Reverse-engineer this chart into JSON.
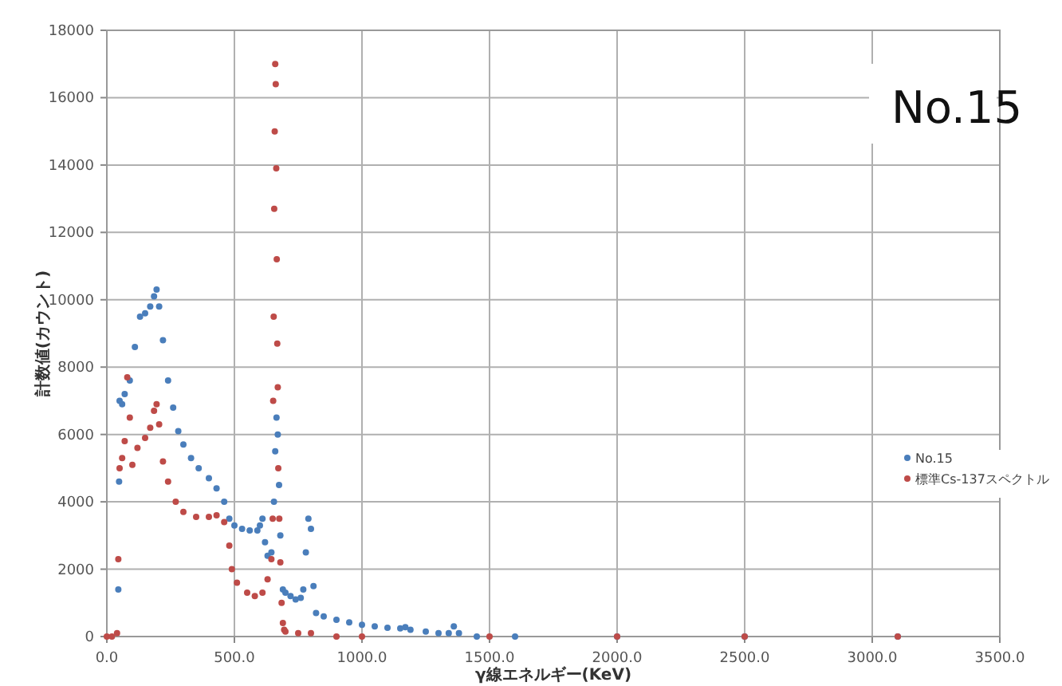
{
  "chart_data": {
    "type": "scatter",
    "xlabel": "γ線エネルギー(KeV)",
    "ylabel": "計数値(カウント)",
    "annotations": [
      "No.15"
    ],
    "xlim": [
      0,
      3500
    ],
    "ylim": [
      0,
      18000
    ],
    "xticks": [
      {
        "value": 0,
        "label": "0.0"
      },
      {
        "value": 500,
        "label": "500.0"
      },
      {
        "value": 1000,
        "label": "1000.0"
      },
      {
        "value": 1500,
        "label": "1500.0"
      },
      {
        "value": 2000,
        "label": "2000.0"
      },
      {
        "value": 2500,
        "label": "2500.0"
      },
      {
        "value": 3000,
        "label": "3000.0"
      },
      {
        "value": 3500,
        "label": "3500.0"
      }
    ],
    "yticks": [
      0,
      2000,
      4000,
      6000,
      8000,
      10000,
      12000,
      14000,
      16000,
      18000
    ],
    "grid": true,
    "legend": "right",
    "marker": "circle",
    "series": [
      {
        "name": "No.15",
        "color": "#4a7ebb",
        "x": [
          45,
          48,
          50,
          60,
          70,
          90,
          110,
          130,
          150,
          170,
          185,
          195,
          205,
          220,
          240,
          260,
          280,
          300,
          330,
          360,
          400,
          430,
          460,
          480,
          500,
          530,
          560,
          590,
          600,
          610,
          620,
          630,
          645,
          655,
          660,
          665,
          670,
          675,
          680,
          690,
          700,
          720,
          740,
          760,
          770,
          780,
          790,
          800,
          810,
          820,
          850,
          900,
          950,
          1000,
          1050,
          1100,
          1150,
          1170,
          1190,
          1250,
          1300,
          1340,
          1360,
          1380,
          1450,
          1600,
          2000,
          2500,
          3100
        ],
        "values": [
          1400,
          4600,
          7000,
          6900,
          7200,
          7600,
          8600,
          9500,
          9600,
          9800,
          10100,
          10300,
          9800,
          8800,
          7600,
          6800,
          6100,
          5700,
          5300,
          5000,
          4700,
          4400,
          4000,
          3500,
          3300,
          3200,
          3150,
          3150,
          3300,
          3500,
          2800,
          2400,
          2500,
          4000,
          5500,
          6500,
          6000,
          4500,
          3000,
          1400,
          1300,
          1200,
          1100,
          1150,
          1400,
          2500,
          3500,
          3200,
          1500,
          700,
          600,
          500,
          420,
          350,
          300,
          260,
          240,
          280,
          200,
          150,
          100,
          100,
          300,
          100,
          0,
          0,
          0,
          0,
          0
        ]
      },
      {
        "name": "標準Cs-137スペクトル",
        "color": "#be4b48",
        "x": [
          0,
          20,
          40,
          45,
          50,
          60,
          70,
          80,
          90,
          100,
          120,
          150,
          170,
          185,
          195,
          205,
          220,
          240,
          270,
          300,
          350,
          400,
          430,
          460,
          480,
          490,
          510,
          550,
          580,
          610,
          630,
          645,
          650,
          652,
          654,
          656,
          658,
          660,
          662,
          664,
          666,
          668,
          670,
          672,
          676,
          680,
          685,
          690,
          695,
          700,
          750,
          800,
          900,
          1000,
          1500,
          2000,
          2500,
          3100
        ],
        "values": [
          0,
          0,
          100,
          2300,
          5000,
          5300,
          5800,
          7700,
          6500,
          5100,
          5600,
          5900,
          6200,
          6700,
          6900,
          6300,
          5200,
          4600,
          4000,
          3700,
          3550,
          3550,
          3600,
          3400,
          2700,
          2000,
          1600,
          1300,
          1200,
          1300,
          1700,
          2300,
          3500,
          7000,
          9500,
          12700,
          15000,
          17000,
          16400,
          13900,
          11200,
          8700,
          7400,
          5000,
          3500,
          2200,
          1000,
          400,
          200,
          150,
          100,
          100,
          0,
          0,
          0,
          0,
          0,
          0
        ]
      }
    ]
  }
}
